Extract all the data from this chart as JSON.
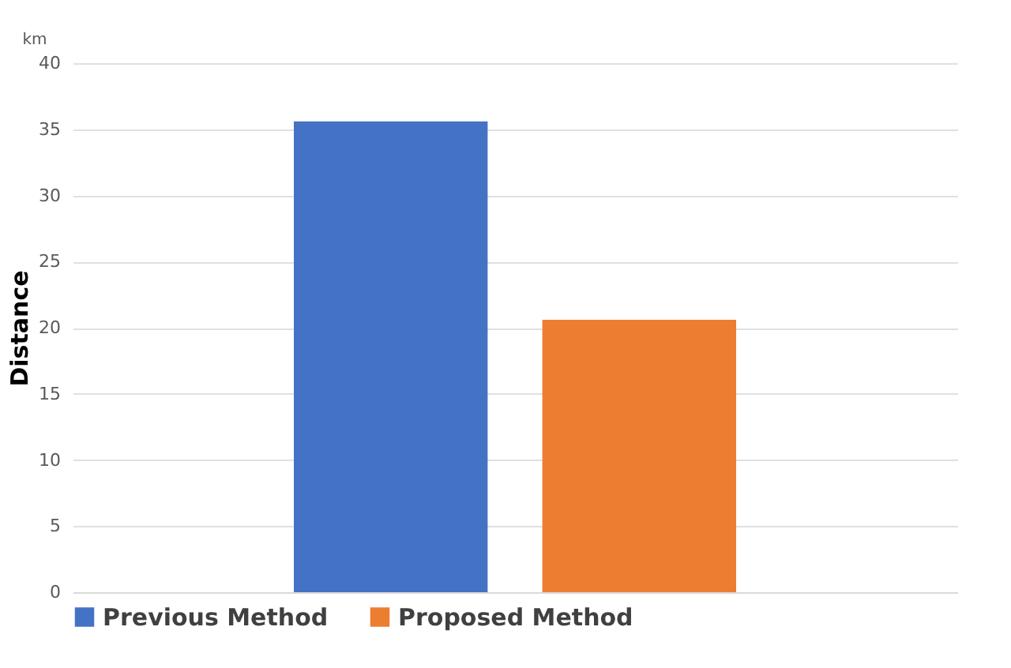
{
  "chart_data": {
    "type": "bar",
    "ylabel": "Distance",
    "annotations": [
      "km"
    ],
    "categories": [
      null
    ],
    "series": [
      {
        "name": "Previous Method",
        "color": "#4472c4",
        "values": [
          35.6
        ]
      },
      {
        "name": "Proposed Method",
        "color": "#ed7d31",
        "values": [
          20.6
        ]
      }
    ],
    "ylim": [
      0,
      40
    ],
    "yticks": [
      0,
      5,
      10,
      15,
      20,
      25,
      30,
      35,
      40
    ],
    "grid": "y",
    "legend": "bottom",
    "tick_labels": "y"
  }
}
